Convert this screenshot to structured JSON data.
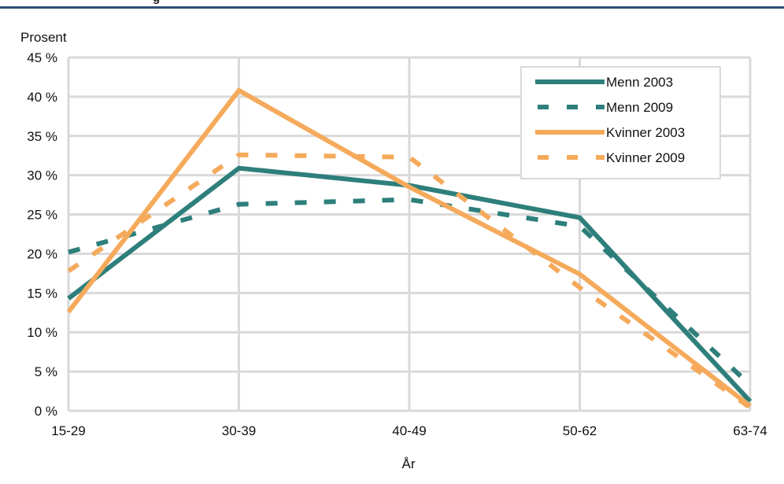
{
  "header": {
    "partial_title": "g"
  },
  "chart_data": {
    "type": "line",
    "title": "",
    "ylabel": "Prosent",
    "xlabel": "År",
    "categories": [
      "15-29",
      "30-39",
      "40-49",
      "50-62",
      "63-74"
    ],
    "ylim": [
      0,
      45
    ],
    "y_ticks": [
      "0 %",
      "5 %",
      "10 %",
      "15 %",
      "20 %",
      "25 %",
      "30 %",
      "35 %",
      "40 %",
      "45 %"
    ],
    "grid": true,
    "legend_position": "top-right",
    "series": [
      {
        "name": "Menn 2003",
        "values": [
          14.3,
          30.9,
          28.7,
          24.6,
          1.2
        ],
        "color": "#2e7f7b",
        "style": "solid"
      },
      {
        "name": "Menn 2009",
        "values": [
          20.2,
          26.3,
          26.9,
          23.5,
          3.3
        ],
        "color": "#2e7f7b",
        "style": "dashed"
      },
      {
        "name": "Kvinner 2003",
        "values": [
          12.6,
          40.8,
          28.5,
          17.4,
          0.6
        ],
        "color": "#f5aa5b",
        "style": "solid"
      },
      {
        "name": "Kvinner 2009",
        "values": [
          17.8,
          32.6,
          32.3,
          15.7,
          0.4
        ],
        "color": "#f5aa5b",
        "style": "dashed"
      }
    ]
  }
}
